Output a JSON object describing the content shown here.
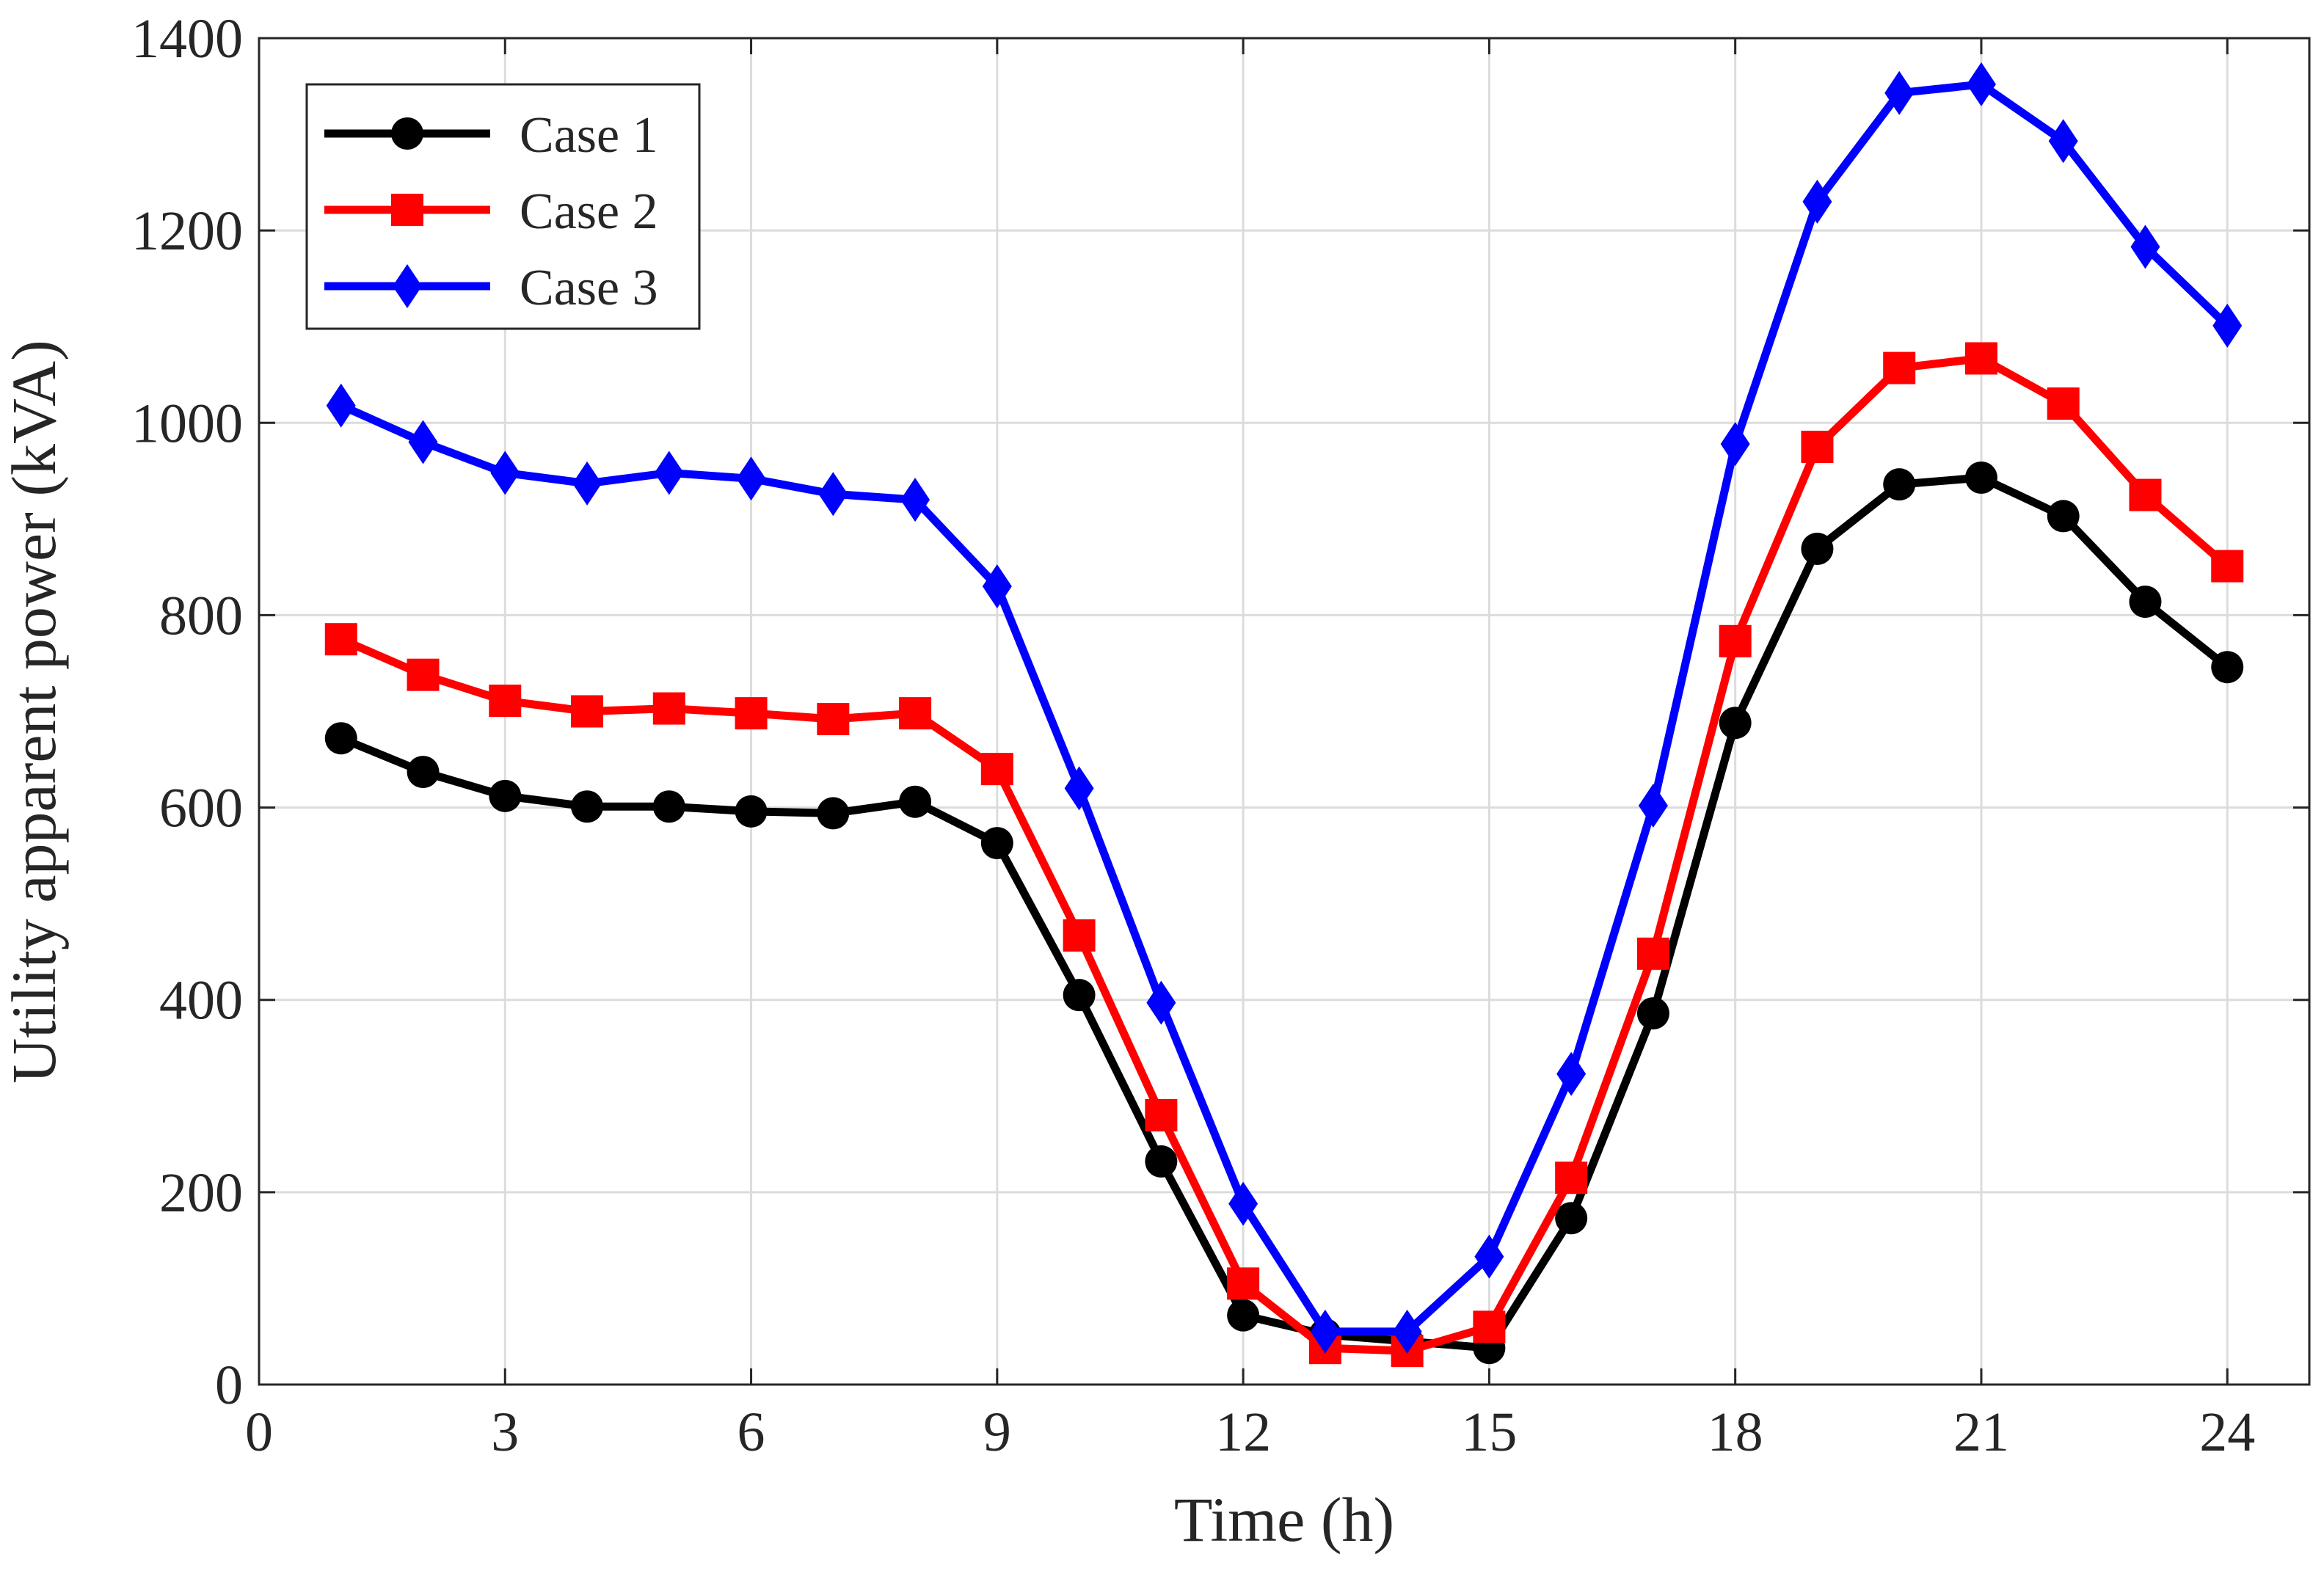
{
  "chart_data": {
    "type": "line",
    "x_label": "Time (h)",
    "y_label": "Utility apparent power (kVA)",
    "x": [
      1,
      2,
      3,
      4,
      5,
      6,
      7,
      8,
      9,
      10,
      11,
      12,
      13,
      14,
      15,
      16,
      17,
      18,
      19,
      20,
      21,
      22,
      23,
      24
    ],
    "series": [
      {
        "name": "Case 1",
        "color": "#000000",
        "marker": "circle",
        "values": [
          672,
          637,
          612,
          601,
          601,
          596,
          594,
          606,
          563,
          405,
          232,
          72,
          52,
          45,
          38,
          173,
          386,
          688,
          869,
          936,
          943,
          903,
          814,
          746
        ]
      },
      {
        "name": "Case 2",
        "color": "#ff0000",
        "marker": "square",
        "values": [
          775,
          738,
          711,
          700,
          703,
          698,
          692,
          698,
          640,
          467,
          280,
          105,
          38,
          35,
          60,
          215,
          448,
          773,
          975,
          1057,
          1067,
          1020,
          925,
          851
        ]
      },
      {
        "name": "Case 3",
        "color": "#0000ff",
        "marker": "diamond",
        "values": [
          1018,
          980,
          948,
          937,
          948,
          942,
          926,
          920,
          830,
          620,
          397,
          188,
          55,
          55,
          133,
          323,
          602,
          978,
          1230,
          1343,
          1352,
          1293,
          1183,
          1101
        ]
      }
    ],
    "xlim": [
      0,
      25
    ],
    "xticks": [
      0,
      3,
      6,
      9,
      12,
      15,
      18,
      21,
      24
    ],
    "ylim": [
      0,
      1400
    ],
    "yticks": [
      0,
      200,
      400,
      600,
      800,
      1000,
      1200,
      1400
    ],
    "grid": true,
    "legend": "upper-left"
  }
}
